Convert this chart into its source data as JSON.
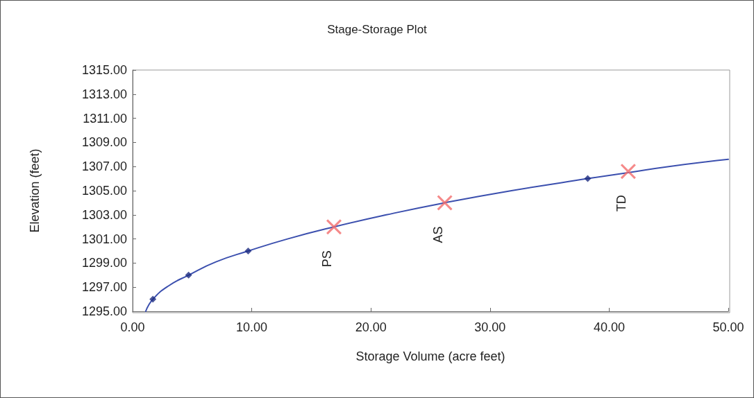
{
  "chart_data": {
    "type": "scatter",
    "title": "Stage-Storage Plot",
    "xlabel": "Storage Volume (acre feet)",
    "ylabel": "Elevation (feet)",
    "xlim": [
      0,
      50
    ],
    "ylim": [
      1295,
      1315
    ],
    "xticks": [
      {
        "value": 0,
        "label": "0.00"
      },
      {
        "value": 10,
        "label": "10.00"
      },
      {
        "value": 20,
        "label": "20.00"
      },
      {
        "value": 30,
        "label": "30.00"
      },
      {
        "value": 40,
        "label": "40.00"
      },
      {
        "value": 50,
        "label": "50.00"
      }
    ],
    "yticks": [
      {
        "value": 1295,
        "label": "1295.00"
      },
      {
        "value": 1297,
        "label": "1297.00"
      },
      {
        "value": 1299,
        "label": "1299.00"
      },
      {
        "value": 1301,
        "label": "1301.00"
      },
      {
        "value": 1303,
        "label": "1303.00"
      },
      {
        "value": 1305,
        "label": "1305.00"
      },
      {
        "value": 1307,
        "label": "1307.00"
      },
      {
        "value": 1309,
        "label": "1309.00"
      },
      {
        "value": 1311,
        "label": "1311.00"
      },
      {
        "value": 1313,
        "label": "1313.00"
      },
      {
        "value": 1315,
        "label": "1315.00"
      }
    ],
    "grid": false,
    "series": [
      {
        "type": "line",
        "color": "#3b4fae",
        "marker": "none",
        "x": [
          1.1,
          1.7,
          3,
          4.7,
          7,
          9.7,
          13,
          16.9,
          21.3,
          26.2,
          31.8,
          38.2,
          41.6,
          45,
          50
        ],
        "values": [
          1295,
          1296,
          1297.1,
          1298,
          1299.1,
          1300,
          1301,
          1302,
          1303,
          1304,
          1305,
          1306,
          1306.5,
          1307,
          1307.6
        ]
      },
      {
        "color": "#1c2a80",
        "marker": "diamond",
        "x": [
          1.7,
          4.7,
          9.7,
          38.2
        ],
        "values": [
          1296,
          1298,
          1300,
          1306
        ]
      },
      {
        "color": "#f26b6b",
        "marker": "cross",
        "x": [
          16.9,
          26.2,
          41.6
        ],
        "values": [
          1302,
          1304,
          1306.6
        ]
      }
    ],
    "annotations": [
      {
        "text": "PS",
        "x": 16.9,
        "y": 1302
      },
      {
        "text": "AS",
        "x": 26.2,
        "y": 1304
      },
      {
        "text": "TD",
        "x": 41.6,
        "y": 1306.6
      }
    ]
  }
}
